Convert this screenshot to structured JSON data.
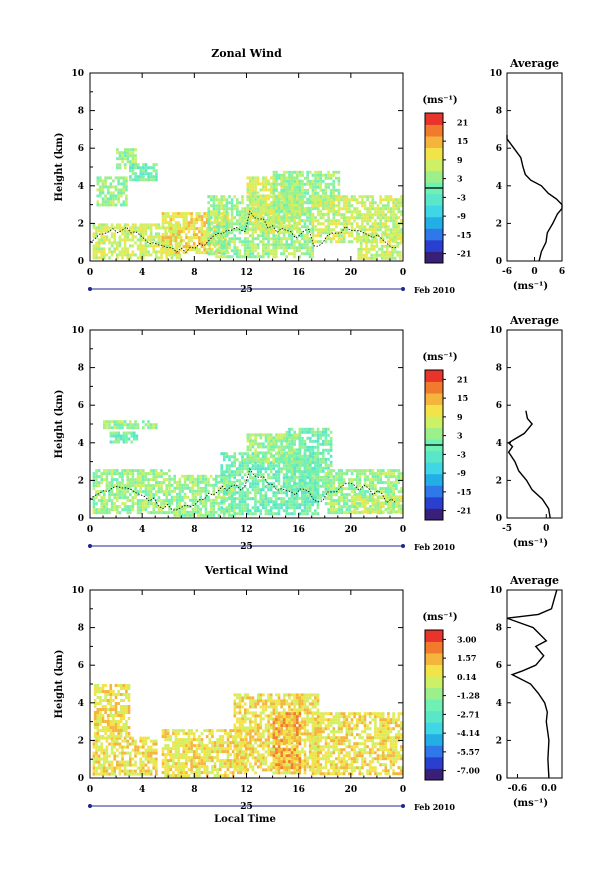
{
  "figure": {
    "xlabel": "Local Time",
    "date_label": "Feb 2010"
  },
  "chart_data": [
    {
      "type": "heatmap",
      "title": "Zonal Wind",
      "ylabel": "Height (km)",
      "xlabel": "Local Time",
      "x_ticks": [
        "0",
        "4",
        "8",
        "12",
        "16",
        "20",
        "0"
      ],
      "x_range": [
        0,
        24
      ],
      "y_ticks": [
        "0",
        "2",
        "4",
        "6",
        "8",
        "10"
      ],
      "y_range": [
        0,
        10
      ],
      "day_label": "25",
      "date_label": "Feb 2010",
      "colorbar": {
        "unit": "(ms⁻¹)",
        "tick_labels": [
          "21",
          "15",
          "9",
          "3",
          "-3",
          "-9",
          "-15",
          "-21"
        ],
        "range": [
          -24,
          24
        ],
        "zero_line": 0
      },
      "wind_cover": [
        {
          "x": [
            0.2,
            6.8
          ],
          "y": [
            0.2,
            2.0
          ],
          "level": 8
        },
        {
          "x": [
            0.5,
            2.8
          ],
          "y": [
            3.0,
            4.5
          ],
          "level": 7
        },
        {
          "x": [
            2.0,
            3.5
          ],
          "y": [
            5.0,
            6.0
          ],
          "level": 7
        },
        {
          "x": [
            3.0,
            5.0
          ],
          "y": [
            4.4,
            5.2
          ],
          "level": 6
        },
        {
          "x": [
            5.5,
            10.5
          ],
          "y": [
            0.5,
            2.6
          ],
          "level": 9
        },
        {
          "x": [
            9.0,
            17.0
          ],
          "y": [
            0.3,
            3.5
          ],
          "level": 7
        },
        {
          "x": [
            12.0,
            16.0
          ],
          "y": [
            1.5,
            4.5
          ],
          "level": 8
        },
        {
          "x": [
            14.0,
            19.0
          ],
          "y": [
            2.5,
            4.8
          ],
          "level": 7
        },
        {
          "x": [
            17.0,
            23.8
          ],
          "y": [
            1.0,
            3.5
          ],
          "level": 8
        },
        {
          "x": [
            20.5,
            23.8
          ],
          "y": [
            0.2,
            1.5
          ],
          "level": 8
        }
      ],
      "profile": {
        "title": "Average",
        "xlabel": "(ms⁻¹)",
        "x_ticks": [
          "-6",
          "0",
          "6"
        ],
        "x_range": [
          -6,
          6
        ],
        "heights": [
          0,
          0.5,
          1,
          1.5,
          2,
          2.5,
          2.8,
          3,
          3.3,
          3.6,
          4,
          4.3,
          4.6,
          5,
          5.5,
          6,
          6.5,
          6.7
        ],
        "values": [
          1.0,
          1.5,
          2.5,
          2.8,
          4.0,
          5.0,
          6.0,
          6.0,
          4.8,
          3.0,
          1.5,
          -0.8,
          -2.0,
          -2.5,
          -3.0,
          -4.5,
          -6.0,
          -6.0
        ]
      }
    },
    {
      "type": "heatmap",
      "title": "Meridional Wind",
      "ylabel": "Height (km)",
      "xlabel": "Local Time",
      "x_ticks": [
        "0",
        "4",
        "8",
        "12",
        "16",
        "20",
        "0"
      ],
      "x_range": [
        0,
        24
      ],
      "y_ticks": [
        "0",
        "2",
        "4",
        "6",
        "8",
        "10"
      ],
      "y_range": [
        0,
        10
      ],
      "day_label": "25",
      "date_label": "Feb 2010",
      "colorbar": {
        "unit": "(ms⁻¹)",
        "tick_labels": [
          "21",
          "15",
          "9",
          "3",
          "-3",
          "-9",
          "-15",
          "-21"
        ],
        "range": [
          -24,
          24
        ],
        "zero_line": 0
      },
      "wind_cover": [
        {
          "x": [
            0.2,
            6.0
          ],
          "y": [
            0.3,
            2.6
          ],
          "level": 7
        },
        {
          "x": [
            1.5,
            3.5
          ],
          "y": [
            4.0,
            4.6
          ],
          "level": 6
        },
        {
          "x": [
            1.0,
            5.0
          ],
          "y": [
            4.8,
            5.2
          ],
          "level": 7
        },
        {
          "x": [
            6.0,
            11.0
          ],
          "y": [
            0.2,
            2.3
          ],
          "level": 7
        },
        {
          "x": [
            10.0,
            17.5
          ],
          "y": [
            0.2,
            3.5
          ],
          "level": 6
        },
        {
          "x": [
            15.0,
            18.5
          ],
          "y": [
            1.0,
            4.8
          ],
          "level": 6
        },
        {
          "x": [
            12.0,
            16.0
          ],
          "y": [
            3.0,
            4.5
          ],
          "level": 7
        },
        {
          "x": [
            18.0,
            23.8
          ],
          "y": [
            0.3,
            2.6
          ],
          "level": 7
        },
        {
          "x": [
            20.0,
            23.8
          ],
          "y": [
            0.3,
            1.2
          ],
          "level": 8
        }
      ],
      "profile": {
        "title": "Average",
        "xlabel": "(ms⁻¹)",
        "x_ticks": [
          "-5",
          "0"
        ],
        "x_range": [
          -5,
          2
        ],
        "heights": [
          0,
          0.5,
          1,
          1.5,
          2,
          2.5,
          3,
          3.5,
          3.8,
          4,
          4.2,
          4.5,
          4.8,
          5.0,
          5.3,
          5.7
        ],
        "values": [
          0.5,
          0.3,
          -0.5,
          -1.8,
          -2.5,
          -3.5,
          -4.0,
          -4.8,
          -4.3,
          -4.8,
          -4.0,
          -2.8,
          -2.2,
          -1.8,
          -2.4,
          -2.6
        ]
      }
    },
    {
      "type": "heatmap",
      "title": "Vertical Wind",
      "ylabel": "Height (km)",
      "xlabel": "Local Time",
      "x_ticks": [
        "0",
        "4",
        "8",
        "12",
        "16",
        "20",
        "0"
      ],
      "x_range": [
        0,
        24
      ],
      "y_ticks": [
        "0",
        "2",
        "4",
        "6",
        "8",
        "10"
      ],
      "y_range": [
        0,
        10
      ],
      "day_label": "25",
      "date_label": "Feb 2010",
      "colorbar": {
        "unit": "(ms⁻¹)",
        "tick_labels": [
          "3.00",
          "1.57",
          "0.14",
          "-1.28",
          "-2.71",
          "-4.14",
          "-5.57",
          "-7.00"
        ],
        "range": [
          -7.71,
          3.71
        ],
        "zero_line": null
      },
      "wind_cover": [
        {
          "x": [
            0.2,
            5.0
          ],
          "y": [
            0.2,
            2.2
          ],
          "level": 9
        },
        {
          "x": [
            0.3,
            3.0
          ],
          "y": [
            2.2,
            5.0
          ],
          "level": 9
        },
        {
          "x": [
            5.5,
            12.0
          ],
          "y": [
            0.2,
            2.6
          ],
          "level": 9
        },
        {
          "x": [
            11.0,
            17.5
          ],
          "y": [
            0.2,
            4.5
          ],
          "level": 9
        },
        {
          "x": [
            14.0,
            16.0
          ],
          "y": [
            0.5,
            3.5
          ],
          "level": 10
        },
        {
          "x": [
            17.0,
            23.8
          ],
          "y": [
            0.2,
            3.5
          ],
          "level": 9
        }
      ],
      "profile": {
        "title": "Average",
        "xlabel": "(ms⁻¹)",
        "x_ticks": [
          "-0.6",
          "0.0"
        ],
        "x_range": [
          -0.8,
          0.25
        ],
        "heights": [
          0,
          1,
          2,
          3,
          3.5,
          4,
          4.5,
          5,
          5.5,
          5.7,
          6,
          6.5,
          7,
          7.3,
          8,
          8.5,
          8.7,
          9,
          9.5,
          10
        ],
        "values": [
          0.0,
          -0.02,
          0.0,
          -0.05,
          -0.03,
          -0.08,
          -0.2,
          -0.35,
          -0.7,
          -0.5,
          -0.25,
          -0.1,
          -0.25,
          -0.05,
          -0.3,
          -0.8,
          -0.2,
          0.05,
          0.1,
          0.15
        ]
      }
    }
  ]
}
